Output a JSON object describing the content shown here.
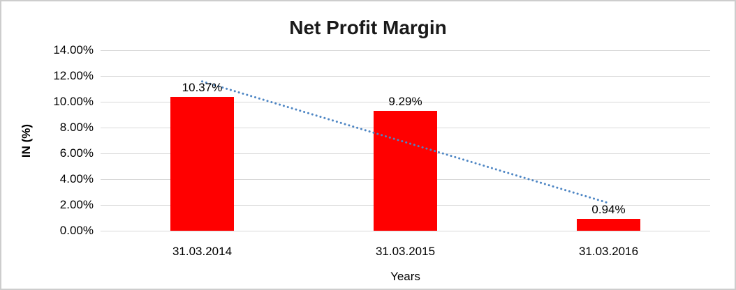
{
  "chart_data": {
    "type": "bar",
    "title": "Net Profit Margin",
    "categories": [
      "31.03.2014",
      "31.03.2015",
      "31.03.2016"
    ],
    "values": [
      10.37,
      9.29,
      0.94
    ],
    "data_labels": [
      "10.37%",
      "9.29%",
      "0.94%"
    ],
    "xlabel": "Years",
    "ylabel": "IN (%)",
    "ylim": [
      0,
      14
    ],
    "ytick_step": 2,
    "ytick_labels": [
      "0.00%",
      "2.00%",
      "4.00%",
      "6.00%",
      "8.00%",
      "10.00%",
      "12.00%",
      "14.00%"
    ],
    "grid": "horizontal",
    "legend": "none",
    "trendline": {
      "style": "dotted",
      "start_value": 11.58,
      "end_value": 2.15
    },
    "colors": {
      "bar": "#ff0000",
      "trendline": "#4e86c4",
      "gridline": "#d9d9d9",
      "text": "#000000",
      "background": "#ffffff",
      "border": "#cdcdcd"
    }
  }
}
